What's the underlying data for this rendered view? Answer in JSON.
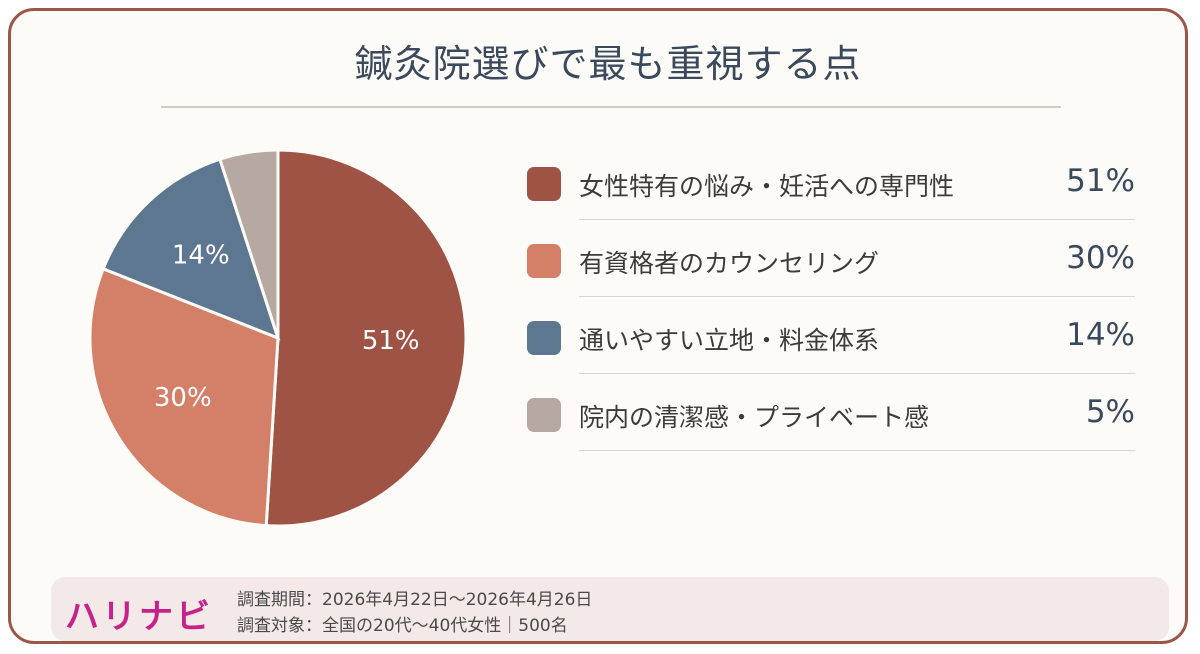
{
  "title": "鍼灸院選びで最も重視する点",
  "chart_data": {
    "type": "pie",
    "categories": [
      "女性特有の悩み・妊活への専門性",
      "有資格者のカウンセリング",
      "通いやすい立地・料金体系",
      "院内の清潔感・プライベート感"
    ],
    "values": [
      51,
      30,
      14,
      5
    ],
    "value_labels": [
      "51%",
      "30%",
      "14%",
      "5%"
    ],
    "slice_labels": [
      "51%",
      "30%",
      "14%",
      ""
    ],
    "colors": [
      "#9e5345",
      "#d48068",
      "#5e7790",
      "#b5a9a2"
    ]
  },
  "footer": {
    "logo": "ハリナビ",
    "period": "調査期間：2026年4月22日〜2026年4月26日",
    "subject": "調査対象：全国の20代〜40代女性｜500名"
  }
}
